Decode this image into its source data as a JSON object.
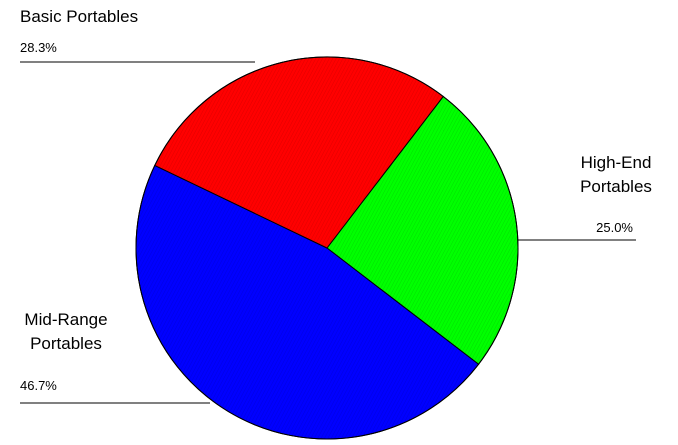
{
  "chart_data": {
    "type": "pie",
    "title": "",
    "slices": [
      {
        "name_lines": [
          "High-End",
          "Portables"
        ],
        "value": 25.0,
        "label": "25.0%",
        "color": "#00ff00"
      },
      {
        "name_lines": [
          "Mid-Range",
          "Portables"
        ],
        "value": 46.7,
        "label": "46.7%",
        "color": "#0000ff"
      },
      {
        "name_lines": [
          "Basic Portables"
        ],
        "value": 28.3,
        "label": "28.3%",
        "color": "#ff0000"
      }
    ],
    "legend": "none"
  }
}
